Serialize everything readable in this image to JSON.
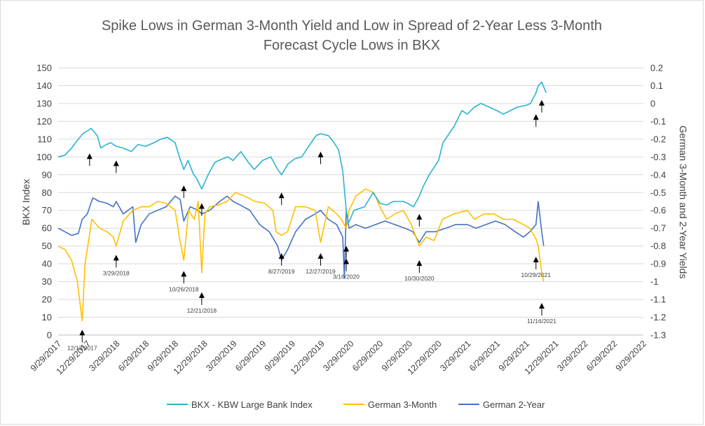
{
  "chart_data": {
    "type": "line",
    "title": [
      "Spike Lows in German 3-Month Yield and Low in Spread of 2-Year Less 3-Month",
      "Forecast Cycle Lows in BKX"
    ],
    "ylabel": "BKX Index",
    "y2label": "German 3-Month and 2-Year Yields",
    "ylim": [
      0,
      150
    ],
    "y2lim": [
      -1.3,
      0.2
    ],
    "y_ticks": [
      "0",
      "10",
      "20",
      "30",
      "40",
      "50",
      "60",
      "70",
      "80",
      "90",
      "100",
      "110",
      "120",
      "130",
      "140",
      "150"
    ],
    "y2_ticks": [
      "-1.3",
      "-1.2",
      "-1.1",
      "-1",
      "-0.9",
      "-0.8",
      "-0.7",
      "-0.6",
      "-0.5",
      "-0.4",
      "-0.3",
      "-0.2",
      "-0.1",
      "0",
      "0.1",
      "0.2"
    ],
    "x_ticks": [
      "9/29/2017",
      "12/29/2017",
      "3/29/2018",
      "6/29/2018",
      "9/29/2018",
      "12/29/2018",
      "3/29/2019",
      "6/29/2019",
      "9/29/2019",
      "12/29/2019",
      "3/29/2020",
      "6/29/2020",
      "9/29/2020",
      "12/29/2020",
      "3/29/2021",
      "6/29/2021",
      "9/29/2021",
      "12/29/2021",
      "3/29/2022",
      "6/29/2022",
      "9/29/2022"
    ],
    "xlim": [
      "2017-09-29",
      "2022-09-29"
    ],
    "grid": true,
    "legend": "bottom",
    "series": [
      {
        "name": "BKX - KBW Large Bank Index",
        "axis": "left",
        "color": "#2ab3d2",
        "x": [
          "2017-09-29",
          "2017-10-20",
          "2017-11-10",
          "2017-12-01",
          "2017-12-15",
          "2018-01-10",
          "2018-01-29",
          "2018-02-09",
          "2018-02-27",
          "2018-03-12",
          "2018-03-29",
          "2018-04-20",
          "2018-05-15",
          "2018-06-05",
          "2018-06-29",
          "2018-07-25",
          "2018-08-15",
          "2018-09-05",
          "2018-09-29",
          "2018-10-12",
          "2018-10-26",
          "2018-11-08",
          "2018-11-26",
          "2018-12-05",
          "2018-12-21",
          "2019-01-10",
          "2019-01-31",
          "2019-02-25",
          "2019-03-12",
          "2019-03-29",
          "2019-04-22",
          "2019-05-15",
          "2019-06-03",
          "2019-06-29",
          "2019-07-25",
          "2019-08-15",
          "2019-08-27",
          "2019-09-16",
          "2019-10-08",
          "2019-10-29",
          "2019-11-20",
          "2019-12-13",
          "2019-12-27",
          "2020-01-20",
          "2020-02-07",
          "2020-02-21",
          "2020-03-05",
          "2020-03-16",
          "2020-03-23",
          "2020-04-09",
          "2020-05-12",
          "2020-06-08",
          "2020-06-29",
          "2020-07-20",
          "2020-08-10",
          "2020-09-10",
          "2020-09-23",
          "2020-10-12",
          "2020-10-30",
          "2020-11-10",
          "2020-11-30",
          "2020-12-29",
          "2021-01-12",
          "2021-02-15",
          "2021-03-12",
          "2021-03-29",
          "2021-04-20",
          "2021-05-10",
          "2021-06-05",
          "2021-06-29",
          "2021-07-19",
          "2021-08-10",
          "2021-09-01",
          "2021-09-29",
          "2021-10-12",
          "2021-10-29",
          "2021-11-05",
          "2021-11-16",
          "2021-11-30"
        ],
        "values": [
          100,
          101,
          105,
          110,
          113,
          116,
          112,
          105,
          107,
          108,
          106,
          105,
          103,
          107,
          106,
          108,
          110,
          111,
          108,
          100,
          93,
          98,
          90,
          88,
          82,
          90,
          97,
          99,
          100,
          98,
          103,
          97,
          93,
          98,
          100,
          93,
          90,
          96,
          99,
          100,
          106,
          112,
          113,
          112,
          108,
          104,
          92,
          70,
          63,
          70,
          72,
          80,
          74,
          73,
          75,
          75,
          74,
          72,
          78,
          83,
          90,
          98,
          108,
          117,
          126,
          124,
          128,
          130,
          128,
          126,
          124,
          126,
          128,
          129,
          130,
          136,
          140,
          142,
          136
        ]
      },
      {
        "name": "German 3-Month",
        "axis": "right",
        "color": "#ffc000",
        "x": [
          "2017-09-29",
          "2017-10-20",
          "2017-11-10",
          "2017-11-28",
          "2017-12-13",
          "2017-12-22",
          "2018-01-12",
          "2018-02-05",
          "2018-02-28",
          "2018-03-20",
          "2018-03-29",
          "2018-04-20",
          "2018-05-20",
          "2018-06-15",
          "2018-07-10",
          "2018-08-05",
          "2018-09-01",
          "2018-09-29",
          "2018-10-12",
          "2018-10-26",
          "2018-11-10",
          "2018-11-28",
          "2018-12-10",
          "2018-12-21",
          "2018-12-31",
          "2019-01-15",
          "2019-02-10",
          "2019-03-10",
          "2019-04-05",
          "2019-05-05",
          "2019-06-05",
          "2019-07-05",
          "2019-07-31",
          "2019-08-10",
          "2019-08-27",
          "2019-09-15",
          "2019-10-10",
          "2019-11-10",
          "2019-12-10",
          "2019-12-27",
          "2020-01-20",
          "2020-02-15",
          "2020-03-01",
          "2020-03-16",
          "2020-03-25",
          "2020-04-15",
          "2020-05-15",
          "2020-06-10",
          "2020-06-29",
          "2020-07-20",
          "2020-08-15",
          "2020-09-10",
          "2020-10-05",
          "2020-10-30",
          "2020-11-20",
          "2020-12-15",
          "2021-01-10",
          "2021-02-15",
          "2021-03-29",
          "2021-04-20",
          "2021-05-20",
          "2021-06-20",
          "2021-07-20",
          "2021-08-20",
          "2021-09-20",
          "2021-10-10",
          "2021-10-29",
          "2021-11-05",
          "2021-11-16",
          "2021-11-22"
        ],
        "values": [
          -0.8,
          -0.82,
          -0.88,
          -1.0,
          -1.22,
          -0.9,
          -0.65,
          -0.7,
          -0.72,
          -0.75,
          -0.8,
          -0.66,
          -0.6,
          -0.58,
          -0.58,
          -0.55,
          -0.56,
          -0.6,
          -0.75,
          -0.88,
          -0.6,
          -0.65,
          -0.55,
          -0.95,
          -0.62,
          -0.58,
          -0.57,
          -0.55,
          -0.5,
          -0.52,
          -0.55,
          -0.56,
          -0.6,
          -0.72,
          -0.74,
          -0.72,
          -0.58,
          -0.58,
          -0.6,
          -0.78,
          -0.58,
          -0.62,
          -0.65,
          -0.7,
          -0.6,
          -0.52,
          -0.48,
          -0.5,
          -0.58,
          -0.65,
          -0.62,
          -0.6,
          -0.68,
          -0.8,
          -0.75,
          -0.77,
          -0.65,
          -0.62,
          -0.6,
          -0.65,
          -0.62,
          -0.62,
          -0.65,
          -0.65,
          -0.68,
          -0.7,
          -0.76,
          -0.8,
          -0.95,
          -1.0
        ]
      },
      {
        "name": "German 2-Year",
        "axis": "right",
        "color": "#4472c4",
        "x": [
          "2017-09-29",
          "2017-10-20",
          "2017-11-10",
          "2017-12-01",
          "2017-12-13",
          "2017-12-29",
          "2018-01-15",
          "2018-02-05",
          "2018-02-28",
          "2018-03-20",
          "2018-03-29",
          "2018-04-20",
          "2018-05-20",
          "2018-05-29",
          "2018-06-15",
          "2018-07-10",
          "2018-08-05",
          "2018-09-01",
          "2018-09-29",
          "2018-10-15",
          "2018-10-26",
          "2018-11-15",
          "2018-12-10",
          "2018-12-21",
          "2019-01-15",
          "2019-02-15",
          "2019-03-10",
          "2019-03-29",
          "2019-04-20",
          "2019-05-20",
          "2019-06-20",
          "2019-07-20",
          "2019-08-15",
          "2019-08-27",
          "2019-09-15",
          "2019-10-10",
          "2019-11-10",
          "2019-12-10",
          "2019-12-27",
          "2020-01-20",
          "2020-02-15",
          "2020-03-05",
          "2020-03-10",
          "2020-03-16",
          "2020-03-25",
          "2020-04-15",
          "2020-05-15",
          "2020-06-15",
          "2020-07-15",
          "2020-08-15",
          "2020-09-15",
          "2020-10-10",
          "2020-10-30",
          "2020-11-20",
          "2020-12-20",
          "2021-01-20",
          "2021-02-20",
          "2021-03-29",
          "2021-04-25",
          "2021-05-25",
          "2021-06-25",
          "2021-07-25",
          "2021-08-25",
          "2021-09-20",
          "2021-10-10",
          "2021-10-29",
          "2021-11-05",
          "2021-11-16",
          "2021-11-22"
        ],
        "values": [
          -0.7,
          -0.72,
          -0.74,
          -0.73,
          -0.65,
          -0.62,
          -0.53,
          -0.55,
          -0.56,
          -0.58,
          -0.55,
          -0.62,
          -0.58,
          -0.78,
          -0.68,
          -0.62,
          -0.6,
          -0.58,
          -0.52,
          -0.54,
          -0.66,
          -0.58,
          -0.6,
          -0.62,
          -0.6,
          -0.55,
          -0.52,
          -0.55,
          -0.57,
          -0.6,
          -0.68,
          -0.72,
          -0.8,
          -0.88,
          -0.82,
          -0.72,
          -0.65,
          -0.62,
          -0.6,
          -0.65,
          -0.68,
          -0.75,
          -0.98,
          -0.6,
          -0.7,
          -0.68,
          -0.7,
          -0.68,
          -0.66,
          -0.68,
          -0.7,
          -0.72,
          -0.78,
          -0.72,
          -0.72,
          -0.7,
          -0.68,
          -0.68,
          -0.7,
          -0.68,
          -0.66,
          -0.68,
          -0.72,
          -0.75,
          -0.72,
          -0.68,
          -0.55,
          -0.72,
          -0.8
        ]
      }
    ],
    "annotations": [
      {
        "label": "",
        "x": "2018-01-05",
        "axis": "left",
        "value": 102,
        "dir": "up"
      },
      {
        "label": "",
        "x": "2018-03-29",
        "axis": "left",
        "value": 98,
        "dir": "up"
      },
      {
        "label": "",
        "x": "2018-10-26",
        "axis": "left",
        "value": 84,
        "dir": "up"
      },
      {
        "label": "",
        "x": "2018-12-21",
        "axis": "left",
        "value": 74,
        "dir": "up"
      },
      {
        "label": "",
        "x": "2019-08-27",
        "axis": "left",
        "value": 80,
        "dir": "up"
      },
      {
        "label": "",
        "x": "2019-12-27",
        "axis": "left",
        "value": 103,
        "dir": "up"
      },
      {
        "label": "",
        "x": "2020-10-30",
        "axis": "left",
        "value": 68,
        "dir": "up"
      },
      {
        "label": "",
        "x": "2021-10-29",
        "axis": "left",
        "value": 124,
        "dir": "up"
      },
      {
        "label": "",
        "x": "2021-11-16",
        "axis": "left",
        "value": 132,
        "dir": "up"
      },
      {
        "label": "12/13/2017",
        "x": "2017-12-13",
        "axis": "right",
        "value": -1.27,
        "dir": "up"
      },
      {
        "label": "3/29/2018",
        "x": "2018-03-29",
        "axis": "right",
        "value": -0.85,
        "dir": "up"
      },
      {
        "label": "10/26/2018",
        "x": "2018-10-26",
        "axis": "right",
        "value": -0.94,
        "dir": "up"
      },
      {
        "label": "12/21/2018",
        "x": "2018-12-21",
        "axis": "right",
        "value": -1.06,
        "dir": "up"
      },
      {
        "label": "8/27/2019",
        "x": "2019-08-27",
        "axis": "right",
        "value": -0.84,
        "dir": "up"
      },
      {
        "label": "12/27/2019",
        "x": "2019-12-27",
        "axis": "right",
        "value": -0.84,
        "dir": "up"
      },
      {
        "label": "",
        "x": "2020-03-16",
        "axis": "right",
        "value": -0.8,
        "dir": "up"
      },
      {
        "label": "3/16/2020",
        "x": "2020-03-16",
        "axis": "right",
        "value": -0.87,
        "dir": "up"
      },
      {
        "label": "10/30/2020",
        "x": "2020-10-30",
        "axis": "right",
        "value": -0.88,
        "dir": "up"
      },
      {
        "label": "10/29/2021",
        "x": "2021-10-29",
        "axis": "right",
        "value": -0.86,
        "dir": "up"
      },
      {
        "label": "11/16/2021",
        "x": "2021-11-16",
        "axis": "right",
        "value": -1.12,
        "dir": "up"
      }
    ]
  }
}
